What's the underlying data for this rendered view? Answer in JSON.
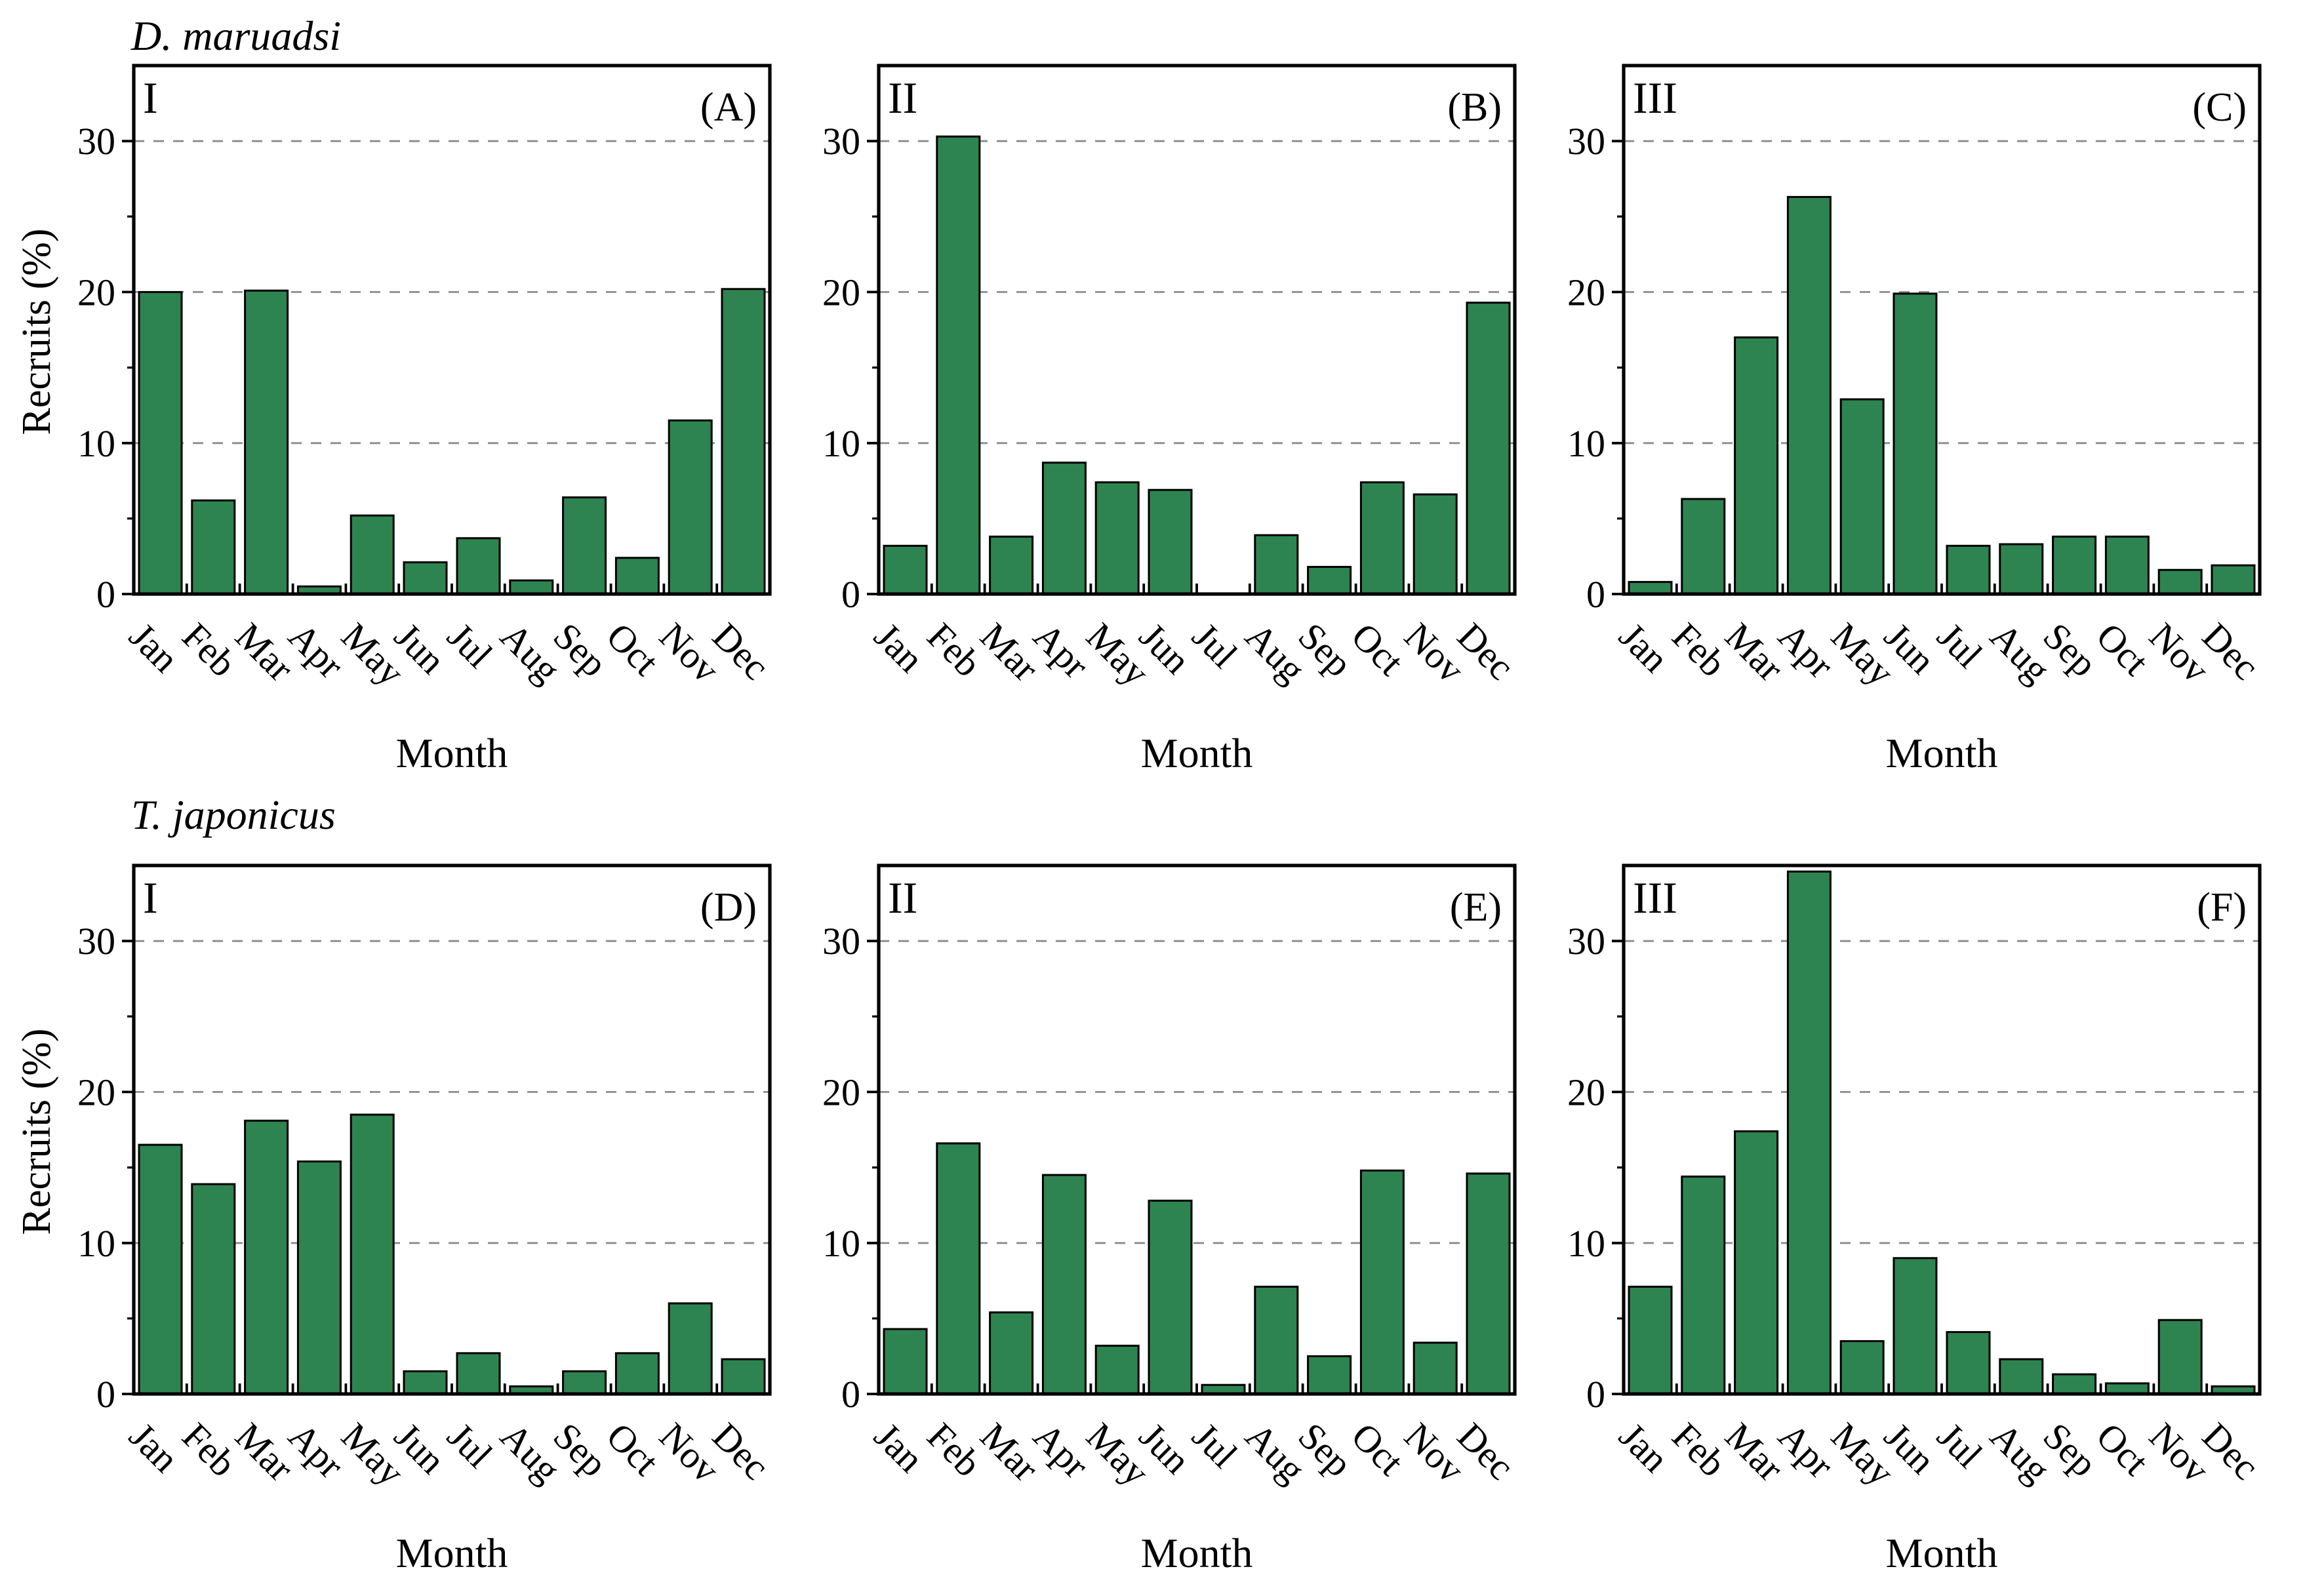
{
  "chart_data": {
    "type": "bar",
    "categories": [
      "Jan",
      "Feb",
      "Mar",
      "Apr",
      "May",
      "Jun",
      "Jul",
      "Aug",
      "Sep",
      "Oct",
      "Nov",
      "Dec"
    ],
    "xlabel": "Month",
    "ylabel": "Recruits (%)",
    "ylim": [
      0,
      35
    ],
    "yticks": [
      0,
      10,
      20,
      30
    ],
    "minor_yticks": [
      5,
      15,
      25
    ],
    "grid_lines": [
      10,
      20,
      30
    ],
    "grid_style": "dashed",
    "grid_color": "#8c8c8c",
    "bar_color": "#2d8450",
    "bar_edge_color": "#000000",
    "legend": "none",
    "rows": [
      {
        "row_title": "D. maruadsi",
        "panels": [
          {
            "id": "I",
            "label": "(A)",
            "values": [
              20.0,
              6.2,
              20.1,
              0.5,
              5.2,
              2.1,
              3.7,
              0.9,
              6.4,
              2.4,
              11.5,
              20.2
            ]
          },
          {
            "id": "II",
            "label": "(B)",
            "values": [
              3.2,
              30.3,
              3.8,
              8.7,
              7.4,
              6.9,
              0.0,
              3.9,
              1.8,
              7.4,
              6.6,
              19.3
            ]
          },
          {
            "id": "III",
            "label": "(C)",
            "values": [
              0.8,
              6.3,
              17.0,
              26.3,
              12.9,
              19.9,
              3.2,
              3.3,
              3.8,
              3.8,
              1.6,
              1.9
            ]
          }
        ]
      },
      {
        "row_title": "T. japonicus",
        "panels": [
          {
            "id": "I",
            "label": "(D)",
            "values": [
              16.5,
              13.9,
              18.1,
              15.4,
              18.5,
              1.5,
              2.7,
              0.5,
              1.5,
              2.7,
              6.0,
              2.3
            ]
          },
          {
            "id": "II",
            "label": "(E)",
            "values": [
              4.3,
              16.6,
              5.4,
              14.5,
              3.2,
              12.8,
              0.6,
              7.1,
              2.5,
              14.8,
              3.4,
              14.6
            ]
          },
          {
            "id": "III",
            "label": "(F)",
            "values": [
              7.1,
              14.4,
              17.4,
              34.6,
              3.5,
              9.0,
              4.1,
              2.3,
              1.3,
              0.7,
              4.9,
              0.5
            ]
          }
        ]
      }
    ]
  }
}
